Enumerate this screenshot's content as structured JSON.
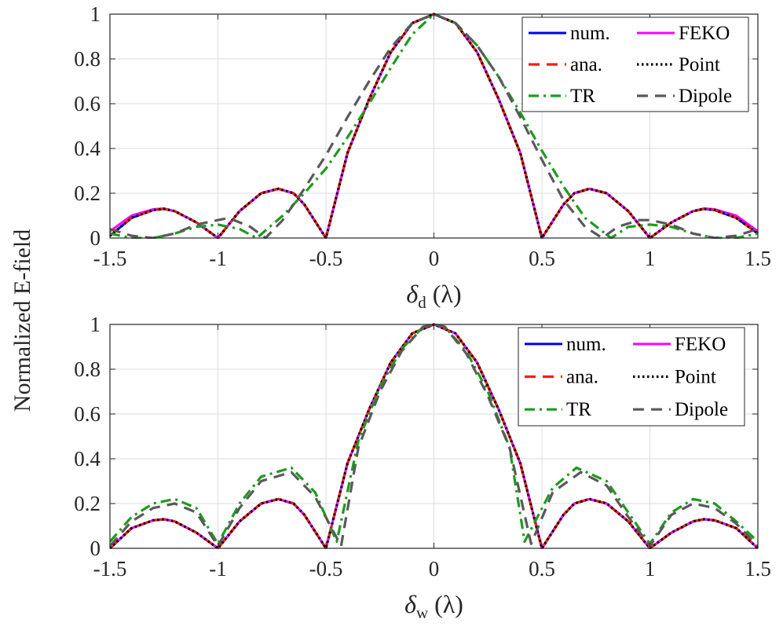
{
  "figure": {
    "ylabel": "Normalized E-field"
  },
  "chart_data": [
    {
      "type": "line",
      "id": "top",
      "xlabel": "δd (λ)",
      "xlabel_parts": {
        "symbol": "δ",
        "sub": "d",
        "unit": "(λ)"
      },
      "xlim": [
        -1.5,
        1.5
      ],
      "ylim": [
        0,
        1
      ],
      "xticks": [
        -1.5,
        -1,
        -0.5,
        0,
        0.5,
        1,
        1.5
      ],
      "xtick_labels": [
        "-1.5",
        "-1",
        "-0.5",
        "0",
        "0.5",
        "1",
        "1.5"
      ],
      "yticks": [
        0,
        0.2,
        0.4,
        0.6,
        0.8,
        1
      ],
      "ytick_labels": [
        "0",
        "0.2",
        "0.4",
        "0.6",
        "0.8",
        "1"
      ],
      "grid": true,
      "legend_position": "top-right",
      "series": [
        {
          "name": "num.",
          "color": "#0000ee",
          "style": "solid",
          "x": [
            -1.5,
            -1.4,
            -1.3,
            -1.25,
            -1.2,
            -1.1,
            -1.0,
            -0.9,
            -0.8,
            -0.72,
            -0.65,
            -0.6,
            -0.5,
            -0.4,
            -0.3,
            -0.2,
            -0.1,
            0,
            0.1,
            0.2,
            0.3,
            0.4,
            0.5,
            0.6,
            0.65,
            0.72,
            0.8,
            0.9,
            1.0,
            1.1,
            1.2,
            1.25,
            1.3,
            1.4,
            1.5
          ],
          "y": [
            0.01,
            0.09,
            0.125,
            0.13,
            0.12,
            0.07,
            0.0,
            0.12,
            0.2,
            0.22,
            0.2,
            0.15,
            0.0,
            0.38,
            0.62,
            0.83,
            0.96,
            1.0,
            0.96,
            0.83,
            0.62,
            0.38,
            0.0,
            0.15,
            0.2,
            0.22,
            0.2,
            0.12,
            0.0,
            0.07,
            0.12,
            0.13,
            0.125,
            0.09,
            0.02
          ]
        },
        {
          "name": "FEKO",
          "color": "#ff00ff",
          "style": "solid",
          "x": [
            -1.5,
            -1.4,
            -1.3,
            -1.25,
            -1.2,
            -1.1,
            -1.0,
            -0.9,
            -0.8,
            -0.72,
            -0.65,
            -0.6,
            -0.5,
            -0.4,
            -0.3,
            -0.2,
            -0.1,
            0,
            0.1,
            0.2,
            0.3,
            0.4,
            0.5,
            0.6,
            0.65,
            0.72,
            0.8,
            0.9,
            1.0,
            1.1,
            1.2,
            1.25,
            1.3,
            1.4,
            1.5
          ],
          "y": [
            0.03,
            0.1,
            0.128,
            0.132,
            0.12,
            0.07,
            0.0,
            0.12,
            0.2,
            0.22,
            0.2,
            0.15,
            0.0,
            0.38,
            0.62,
            0.83,
            0.96,
            1.0,
            0.96,
            0.83,
            0.62,
            0.38,
            0.0,
            0.15,
            0.2,
            0.22,
            0.2,
            0.12,
            0.0,
            0.07,
            0.12,
            0.132,
            0.128,
            0.1,
            0.03
          ]
        },
        {
          "name": "ana.",
          "color": "#ff1a1a",
          "style": "dashed",
          "x": [
            -1.5,
            -1.4,
            -1.3,
            -1.25,
            -1.2,
            -1.1,
            -1.0,
            -0.9,
            -0.8,
            -0.72,
            -0.65,
            -0.6,
            -0.5,
            -0.4,
            -0.3,
            -0.2,
            -0.1,
            0,
            0.1,
            0.2,
            0.3,
            0.4,
            0.5,
            0.6,
            0.65,
            0.72,
            0.8,
            0.9,
            1.0,
            1.1,
            1.2,
            1.25,
            1.3,
            1.4,
            1.5
          ],
          "y": [
            0.01,
            0.09,
            0.125,
            0.13,
            0.12,
            0.07,
            0.0,
            0.12,
            0.2,
            0.22,
            0.2,
            0.15,
            0.0,
            0.38,
            0.62,
            0.83,
            0.96,
            1.0,
            0.96,
            0.83,
            0.62,
            0.38,
            0.0,
            0.15,
            0.2,
            0.22,
            0.2,
            0.12,
            0.0,
            0.07,
            0.12,
            0.13,
            0.125,
            0.09,
            0.02
          ]
        },
        {
          "name": "Point",
          "color": "#000000",
          "style": "dotted",
          "x": [
            -1.5,
            -1.4,
            -1.3,
            -1.25,
            -1.2,
            -1.1,
            -1.0,
            -0.9,
            -0.8,
            -0.72,
            -0.65,
            -0.6,
            -0.5,
            -0.4,
            -0.3,
            -0.2,
            -0.1,
            0,
            0.1,
            0.2,
            0.3,
            0.4,
            0.5,
            0.6,
            0.65,
            0.72,
            0.8,
            0.9,
            1.0,
            1.1,
            1.2,
            1.25,
            1.3,
            1.4,
            1.5
          ],
          "y": [
            0.01,
            0.09,
            0.125,
            0.13,
            0.12,
            0.07,
            0.0,
            0.12,
            0.2,
            0.22,
            0.2,
            0.15,
            0.0,
            0.38,
            0.62,
            0.83,
            0.96,
            1.0,
            0.96,
            0.83,
            0.62,
            0.38,
            0.0,
            0.15,
            0.2,
            0.22,
            0.2,
            0.12,
            0.0,
            0.07,
            0.12,
            0.13,
            0.125,
            0.09,
            0.02
          ]
        },
        {
          "name": "TR",
          "color": "#1e9a1e",
          "style": "dashdot",
          "x": [
            -1.5,
            -1.4,
            -1.3,
            -1.2,
            -1.1,
            -1.0,
            -0.9,
            -0.82,
            -0.7,
            -0.6,
            -0.5,
            -0.4,
            -0.3,
            -0.2,
            -0.1,
            0,
            0.1,
            0.2,
            0.3,
            0.4,
            0.5,
            0.6,
            0.7,
            0.82,
            0.9,
            1.0,
            1.1,
            1.2,
            1.3,
            1.4,
            1.5
          ],
          "y": [
            0.02,
            0.0,
            0.0,
            0.02,
            0.05,
            0.06,
            0.04,
            0.0,
            0.1,
            0.2,
            0.31,
            0.45,
            0.6,
            0.76,
            0.91,
            1.0,
            0.96,
            0.86,
            0.72,
            0.56,
            0.39,
            0.23,
            0.09,
            0.0,
            0.05,
            0.06,
            0.05,
            0.02,
            0.0,
            0.0,
            0.02
          ]
        },
        {
          "name": "Dipole",
          "color": "#5a5a5a",
          "style": "dashed",
          "x": [
            -1.5,
            -1.4,
            -1.3,
            -1.2,
            -1.1,
            -1.0,
            -0.95,
            -0.85,
            -0.78,
            -0.7,
            -0.6,
            -0.5,
            -0.4,
            -0.3,
            -0.2,
            -0.1,
            0,
            0.1,
            0.2,
            0.3,
            0.4,
            0.5,
            0.6,
            0.7,
            0.78,
            0.85,
            0.95,
            1.0,
            1.1,
            1.2,
            1.3,
            1.4,
            1.5
          ],
          "y": [
            0.04,
            0.01,
            0.0,
            0.02,
            0.06,
            0.08,
            0.09,
            0.05,
            0.0,
            0.08,
            0.22,
            0.37,
            0.54,
            0.7,
            0.85,
            0.96,
            1.0,
            0.96,
            0.86,
            0.72,
            0.54,
            0.35,
            0.17,
            0.05,
            0.0,
            0.05,
            0.08,
            0.08,
            0.06,
            0.02,
            0.0,
            0.01,
            0.04
          ]
        }
      ]
    },
    {
      "type": "line",
      "id": "bottom",
      "xlabel": "δw (λ)",
      "xlabel_parts": {
        "symbol": "δ",
        "sub": "w",
        "unit": "(λ)"
      },
      "xlim": [
        -1.5,
        1.5
      ],
      "ylim": [
        0,
        1
      ],
      "xticks": [
        -1.5,
        -1,
        -0.5,
        0,
        0.5,
        1,
        1.5
      ],
      "xtick_labels": [
        "-1.5",
        "-1",
        "-0.5",
        "0",
        "0.5",
        "1",
        "1.5"
      ],
      "yticks": [
        0,
        0.2,
        0.4,
        0.6,
        0.8,
        1
      ],
      "ytick_labels": [
        "0",
        "0.2",
        "0.4",
        "0.6",
        "0.8",
        "1"
      ],
      "grid": true,
      "legend_position": "top-right",
      "series": [
        {
          "name": "num.",
          "color": "#0000ee",
          "style": "solid",
          "x": [
            -1.5,
            -1.4,
            -1.3,
            -1.25,
            -1.2,
            -1.1,
            -1.0,
            -0.9,
            -0.8,
            -0.72,
            -0.65,
            -0.6,
            -0.5,
            -0.4,
            -0.3,
            -0.2,
            -0.1,
            0,
            0.1,
            0.2,
            0.3,
            0.4,
            0.5,
            0.6,
            0.65,
            0.72,
            0.8,
            0.9,
            1.0,
            1.1,
            1.2,
            1.25,
            1.3,
            1.4,
            1.5
          ],
          "y": [
            0.0,
            0.09,
            0.125,
            0.13,
            0.12,
            0.07,
            0.0,
            0.12,
            0.2,
            0.22,
            0.2,
            0.15,
            0.0,
            0.38,
            0.62,
            0.83,
            0.96,
            1.0,
            0.96,
            0.83,
            0.62,
            0.38,
            0.0,
            0.15,
            0.2,
            0.22,
            0.2,
            0.12,
            0.0,
            0.07,
            0.12,
            0.13,
            0.125,
            0.09,
            0.0
          ]
        },
        {
          "name": "FEKO",
          "color": "#ff00ff",
          "style": "solid",
          "x": [
            -1.5,
            -1.4,
            -1.3,
            -1.25,
            -1.2,
            -1.1,
            -1.0,
            -0.9,
            -0.8,
            -0.72,
            -0.65,
            -0.6,
            -0.5,
            -0.4,
            -0.3,
            -0.2,
            -0.1,
            0,
            0.1,
            0.2,
            0.3,
            0.4,
            0.5,
            0.6,
            0.65,
            0.72,
            0.8,
            0.9,
            1.0,
            1.1,
            1.2,
            1.25,
            1.3,
            1.4,
            1.5
          ],
          "y": [
            0.0,
            0.09,
            0.125,
            0.13,
            0.12,
            0.07,
            0.0,
            0.12,
            0.2,
            0.22,
            0.2,
            0.15,
            0.0,
            0.38,
            0.62,
            0.83,
            0.96,
            1.0,
            0.96,
            0.83,
            0.62,
            0.38,
            0.0,
            0.15,
            0.2,
            0.22,
            0.2,
            0.12,
            0.0,
            0.07,
            0.12,
            0.13,
            0.125,
            0.09,
            0.0
          ]
        },
        {
          "name": "ana.",
          "color": "#ff1a1a",
          "style": "dashed",
          "x": [
            -1.5,
            -1.4,
            -1.3,
            -1.25,
            -1.2,
            -1.1,
            -1.0,
            -0.9,
            -0.8,
            -0.72,
            -0.65,
            -0.6,
            -0.5,
            -0.4,
            -0.3,
            -0.2,
            -0.1,
            0,
            0.1,
            0.2,
            0.3,
            0.4,
            0.5,
            0.6,
            0.65,
            0.72,
            0.8,
            0.9,
            1.0,
            1.1,
            1.2,
            1.25,
            1.3,
            1.4,
            1.5
          ],
          "y": [
            0.0,
            0.09,
            0.125,
            0.13,
            0.12,
            0.07,
            0.0,
            0.12,
            0.2,
            0.22,
            0.2,
            0.15,
            0.0,
            0.38,
            0.62,
            0.83,
            0.96,
            1.0,
            0.96,
            0.83,
            0.62,
            0.38,
            0.0,
            0.15,
            0.2,
            0.22,
            0.2,
            0.12,
            0.0,
            0.07,
            0.12,
            0.13,
            0.125,
            0.09,
            0.0
          ]
        },
        {
          "name": "Point",
          "color": "#000000",
          "style": "dotted",
          "x": [
            -1.5,
            -1.4,
            -1.3,
            -1.25,
            -1.2,
            -1.1,
            -1.0,
            -0.9,
            -0.8,
            -0.72,
            -0.65,
            -0.6,
            -0.5,
            -0.4,
            -0.3,
            -0.2,
            -0.1,
            0,
            0.1,
            0.2,
            0.3,
            0.4,
            0.5,
            0.6,
            0.65,
            0.72,
            0.8,
            0.9,
            1.0,
            1.1,
            1.2,
            1.25,
            1.3,
            1.4,
            1.5
          ],
          "y": [
            0.0,
            0.09,
            0.125,
            0.13,
            0.12,
            0.07,
            0.0,
            0.12,
            0.2,
            0.22,
            0.2,
            0.15,
            0.0,
            0.38,
            0.62,
            0.83,
            0.96,
            1.0,
            0.96,
            0.83,
            0.62,
            0.38,
            0.0,
            0.15,
            0.2,
            0.22,
            0.2,
            0.12,
            0.0,
            0.07,
            0.12,
            0.13,
            0.125,
            0.09,
            0.0
          ]
        },
        {
          "name": "TR",
          "color": "#1e9a1e",
          "style": "dashdot",
          "x": [
            -1.5,
            -1.4,
            -1.3,
            -1.2,
            -1.1,
            -1.0,
            -0.9,
            -0.8,
            -0.66,
            -0.55,
            -0.45,
            -0.35,
            -0.25,
            -0.15,
            -0.05,
            0,
            0.05,
            0.15,
            0.25,
            0.35,
            0.42,
            0.55,
            0.66,
            0.8,
            0.9,
            1.0,
            1.1,
            1.2,
            1.3,
            1.4,
            1.5
          ],
          "y": [
            0.03,
            0.14,
            0.2,
            0.22,
            0.18,
            0.02,
            0.2,
            0.32,
            0.36,
            0.25,
            0.03,
            0.48,
            0.72,
            0.89,
            0.99,
            1.0,
            0.99,
            0.88,
            0.7,
            0.45,
            0.03,
            0.27,
            0.36,
            0.3,
            0.16,
            0.02,
            0.16,
            0.22,
            0.2,
            0.12,
            0.03
          ]
        },
        {
          "name": "Dipole",
          "color": "#5a5a5a",
          "style": "dashed",
          "x": [
            -1.5,
            -1.4,
            -1.3,
            -1.2,
            -1.1,
            -1.0,
            -0.9,
            -0.8,
            -0.66,
            -0.55,
            -0.43,
            -0.35,
            -0.25,
            -0.15,
            -0.05,
            0,
            0.05,
            0.15,
            0.25,
            0.35,
            0.45,
            0.55,
            0.68,
            0.8,
            0.9,
            1.0,
            1.1,
            1.2,
            1.3,
            1.4,
            1.5
          ],
          "y": [
            0.01,
            0.12,
            0.18,
            0.2,
            0.16,
            0.01,
            0.18,
            0.3,
            0.34,
            0.23,
            0.01,
            0.45,
            0.7,
            0.88,
            0.99,
            1.0,
            0.99,
            0.87,
            0.68,
            0.45,
            0.02,
            0.25,
            0.34,
            0.28,
            0.14,
            0.01,
            0.15,
            0.2,
            0.18,
            0.11,
            0.01
          ]
        }
      ]
    }
  ]
}
